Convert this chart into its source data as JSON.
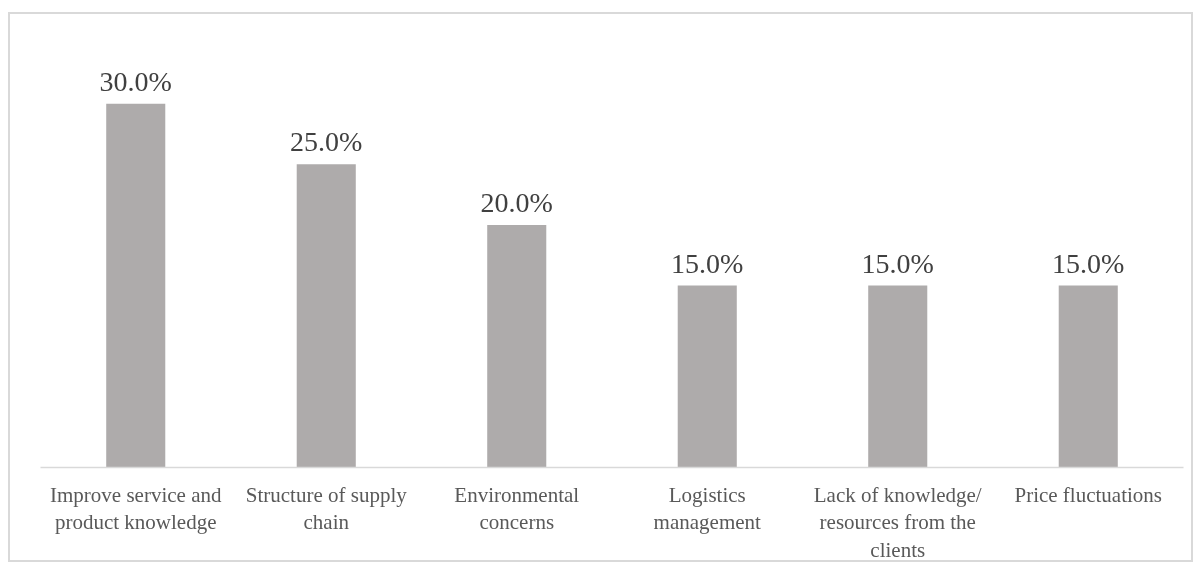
{
  "chart_data": {
    "type": "bar",
    "categories": [
      "Improve service and product knowledge",
      "Structure of supply chain",
      "Environmental concerns",
      "Logistics management",
      "Lack of knowledge/ resources from the clients",
      "Price fluctuations"
    ],
    "values": [
      30,
      25,
      20,
      15,
      15,
      15
    ],
    "value_labels": [
      "30.0%",
      "25.0%",
      "20.0%",
      "15.0%",
      "15.0%",
      "15.0%"
    ],
    "color": "#aeabab"
  }
}
